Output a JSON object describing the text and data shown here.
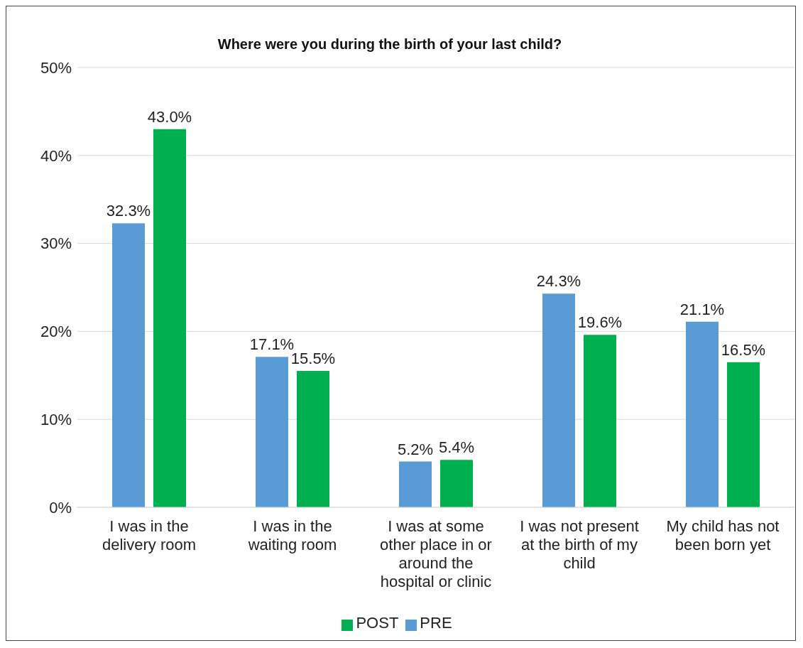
{
  "chart_data": {
    "type": "bar",
    "title": "Where were you during the birth of your last child?",
    "categories": [
      "I was in the delivery room",
      "I was in the waiting room",
      "I was at some other place in or around the hospital or clinic",
      "I was not present at the birth of my child",
      "My child has not been born yet"
    ],
    "series": [
      {
        "name": "PRE",
        "color": "#5b9bd5",
        "values": [
          32.3,
          17.1,
          5.2,
          24.3,
          21.1
        ],
        "value_labels": [
          "32.3%",
          "17.1%",
          "5.2%",
          "24.3%",
          "21.1%"
        ]
      },
      {
        "name": "POST",
        "color": "#00b050",
        "values": [
          43.0,
          15.5,
          5.4,
          19.6,
          16.5
        ],
        "value_labels": [
          "43.0%",
          "15.5%",
          "5.4%",
          "19.6%",
          "16.5%"
        ]
      }
    ],
    "ylim": [
      0,
      50
    ],
    "yticks": [
      {
        "value": 0,
        "label": "0%"
      },
      {
        "value": 10,
        "label": "10%"
      },
      {
        "value": 20,
        "label": "20%"
      },
      {
        "value": 30,
        "label": "30%"
      },
      {
        "value": 40,
        "label": "40%"
      },
      {
        "value": 50,
        "label": "50%"
      }
    ],
    "grid": "y",
    "legend": "bottom"
  }
}
